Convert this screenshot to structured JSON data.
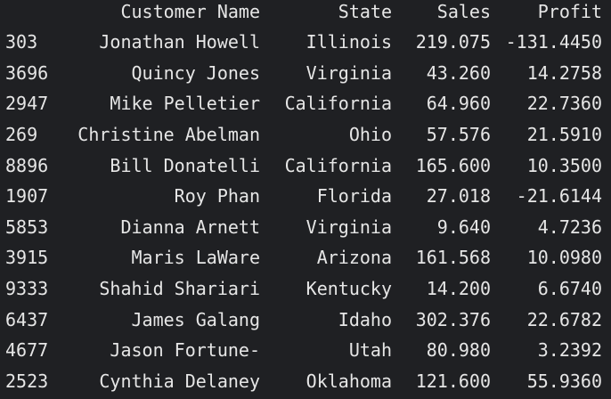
{
  "table": {
    "headers": {
      "name": "Customer Name",
      "state": "State",
      "sales": "Sales",
      "profit": "Profit"
    },
    "rows": [
      {
        "index": "303",
        "name": "Jonathan Howell",
        "state": "Illinois",
        "sales": "219.075",
        "profit": "-131.4450"
      },
      {
        "index": "3696",
        "name": "Quincy Jones",
        "state": "Virginia",
        "sales": "43.260",
        "profit": "14.2758"
      },
      {
        "index": "2947",
        "name": "Mike Pelletier",
        "state": "California",
        "sales": "64.960",
        "profit": "22.7360"
      },
      {
        "index": "269",
        "name": "Christine Abelman",
        "state": "Ohio",
        "sales": "57.576",
        "profit": "21.5910"
      },
      {
        "index": "8896",
        "name": "Bill Donatelli",
        "state": "California",
        "sales": "165.600",
        "profit": "10.3500"
      },
      {
        "index": "1907",
        "name": "Roy Phan",
        "state": "Florida",
        "sales": "27.018",
        "profit": "-21.6144"
      },
      {
        "index": "5853",
        "name": "Dianna Arnett",
        "state": "Virginia",
        "sales": "9.640",
        "profit": "4.7236"
      },
      {
        "index": "3915",
        "name": "Maris LaWare",
        "state": "Arizona",
        "sales": "161.568",
        "profit": "10.0980"
      },
      {
        "index": "9333",
        "name": "Shahid Shariari",
        "state": "Kentucky",
        "sales": "14.200",
        "profit": "6.6740"
      },
      {
        "index": "6437",
        "name": "James Galang",
        "state": "Idaho",
        "sales": "302.376",
        "profit": "22.6782"
      },
      {
        "index": "4677",
        "name": "Jason Fortune-",
        "state": "Utah",
        "sales": "80.980",
        "profit": "3.2392"
      },
      {
        "index": "2523",
        "name": "Cynthia Delaney",
        "state": "Oklahoma",
        "sales": "121.600",
        "profit": "55.9360"
      }
    ]
  }
}
